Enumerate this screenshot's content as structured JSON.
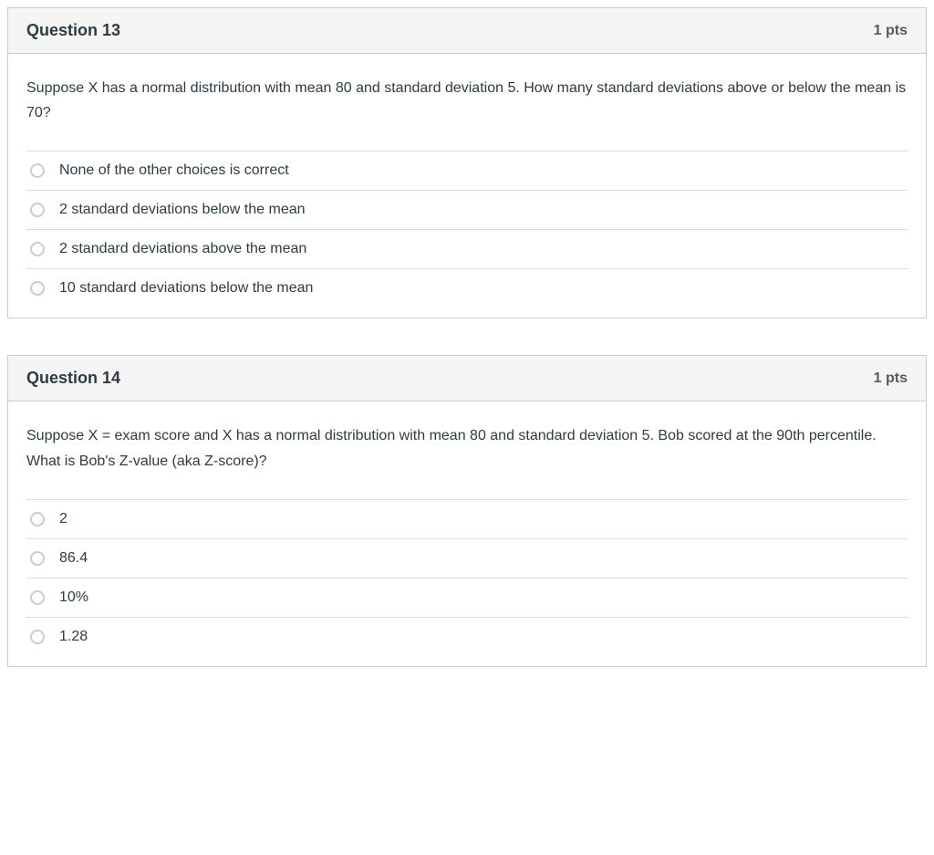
{
  "questions": [
    {
      "title": "Question 13",
      "points": "1 pts",
      "text": "Suppose X has a normal distribution with mean 80 and standard deviation 5. How many standard deviations above or below the mean is 70?",
      "answers": [
        "None of the other choices is correct",
        "2 standard deviations below the mean",
        "2 standard deviations above the mean",
        "10 standard deviations below the mean"
      ]
    },
    {
      "title": "Question 14",
      "points": "1 pts",
      "text": "Suppose X = exam score and X has a normal distribution with mean 80 and standard deviation 5. Bob scored at the 90th percentile. What is Bob's Z-value (aka Z-score)?",
      "answers": [
        "2",
        "86.4",
        "10%",
        "1.28"
      ]
    }
  ],
  "colors": {
    "border": "#c7cdd1",
    "header_bg": "#f5f5f5",
    "text": "#2d3b45",
    "points": "#595959",
    "divider": "#dddddd",
    "background": "#ffffff"
  }
}
